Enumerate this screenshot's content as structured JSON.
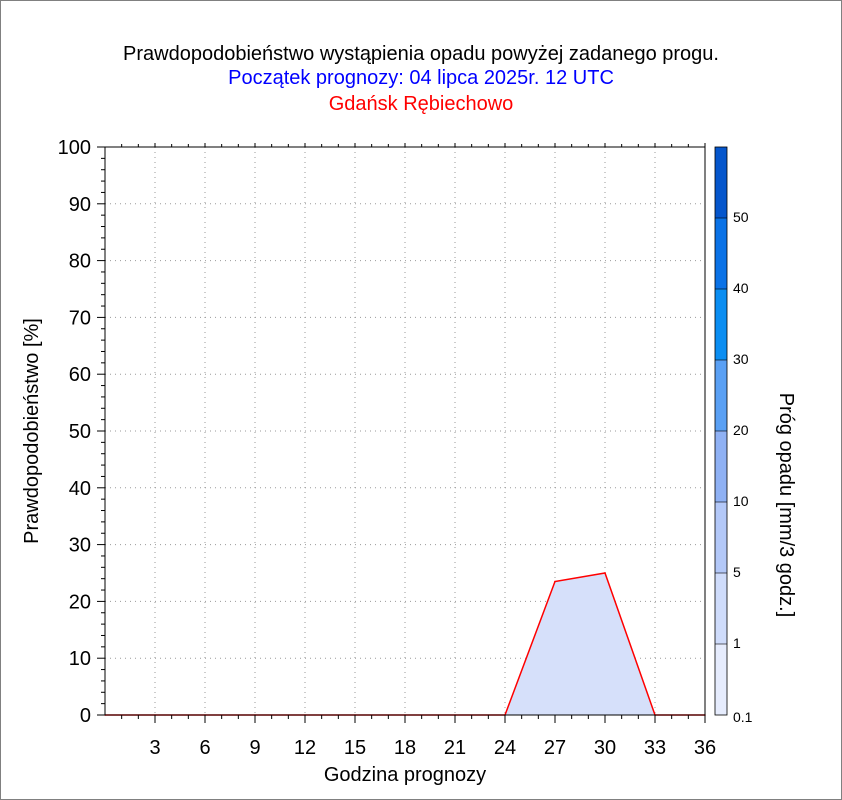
{
  "chart_data": {
    "type": "area",
    "title": "Prawdopodobieństwo wystąpienia opadu powyżej zadanego progu.",
    "subtitle": "Początek prognozy: 04 lipca 2025r. 12 UTC",
    "location": "Gdańsk Rębiechowo",
    "xlabel": "Godzina prognozy",
    "ylabel": "Prawdopodobieństwo [%]",
    "xlim": [
      0,
      36
    ],
    "ylim": [
      0,
      100
    ],
    "x_ticks": [
      3,
      6,
      9,
      12,
      15,
      18,
      21,
      24,
      27,
      30,
      33,
      36
    ],
    "y_ticks": [
      0,
      10,
      20,
      30,
      40,
      50,
      60,
      70,
      80,
      90,
      100
    ],
    "grid": true,
    "series": [
      {
        "x": [
          0,
          3,
          6,
          9,
          12,
          15,
          18,
          21,
          24,
          27,
          30,
          33,
          36
        ],
        "values": [
          0,
          0,
          0,
          0,
          0,
          0,
          0,
          0,
          0,
          23.5,
          25,
          0,
          0
        ],
        "color": "#ff0000",
        "fill": "#d6e0fa"
      }
    ],
    "colorbar": {
      "label": "Próg opadu [mm/3 godz.]",
      "labels": [
        "0.1",
        "1",
        "5",
        "10",
        "20",
        "30",
        "40",
        "50"
      ],
      "colors": [
        "#e6ecfd",
        "#cfdcfb",
        "#b3c8f8",
        "#8fb1f4",
        "#5aa0f4",
        "#0b8ef2",
        "#0a72e6",
        "#0556cc",
        "#0a3fa8"
      ]
    }
  }
}
